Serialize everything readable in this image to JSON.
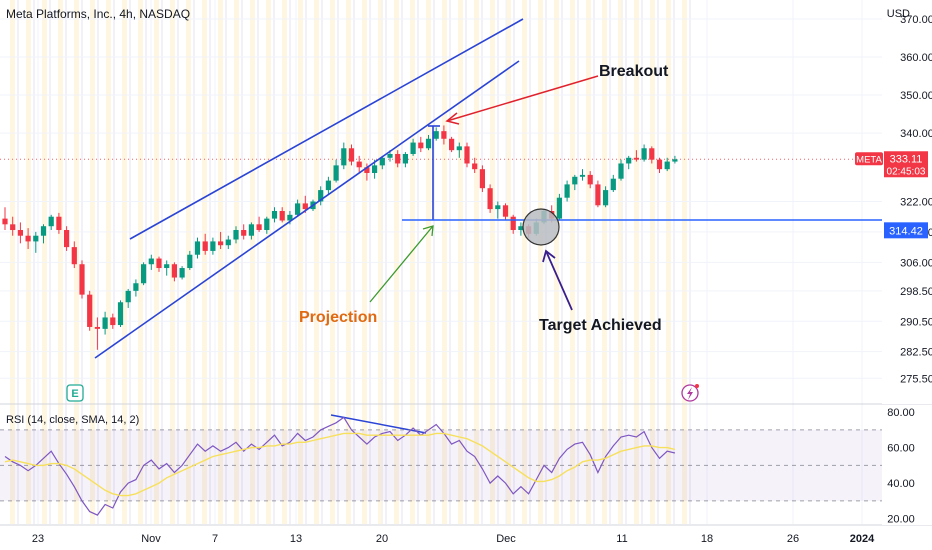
{
  "header": {
    "title": "Meta Platforms, Inc., 4h, NASDAQ",
    "currency": "USD"
  },
  "chart_data": [
    {
      "type": "candlestick",
      "ticker": "META",
      "price_axis": {
        "ticks": [
          "370.00",
          "360.00",
          "350.00",
          "340.00",
          "322.00",
          "314.00",
          "306.00",
          "298.50",
          "290.50",
          "282.50",
          "275.50"
        ],
        "ylim": [
          269,
          375
        ]
      },
      "time_axis": {
        "ticks": [
          "23",
          "Nov",
          "7",
          "13",
          "20",
          "Dec",
          "11",
          "18",
          "26",
          "2024"
        ]
      },
      "last_price": {
        "label": "META",
        "value": "333.11",
        "countdown": "02:45:03",
        "color": "#f23645"
      },
      "horizontal_level": {
        "value": "314.42",
        "color": "#2962ff"
      },
      "candles": [
        [
          317.5,
          320.5,
          314.5,
          316.0
        ],
        [
          316.0,
          318.0,
          313.0,
          314.5
        ],
        [
          314.5,
          316.5,
          311.0,
          313.0
        ],
        [
          313.0,
          315.0,
          309.5,
          311.5
        ],
        [
          311.5,
          314.0,
          308.5,
          313.0
        ],
        [
          313.0,
          316.0,
          311.0,
          315.5
        ],
        [
          315.5,
          318.5,
          314.5,
          318.0
        ],
        [
          318.0,
          319.0,
          313.5,
          314.5
        ],
        [
          314.5,
          315.5,
          309.0,
          310.0
        ],
        [
          310.0,
          311.5,
          304.5,
          305.5
        ],
        [
          305.5,
          306.5,
          296.5,
          297.5
        ],
        [
          297.5,
          298.5,
          288.0,
          289.0
        ],
        [
          289.0,
          291.5,
          283.0,
          288.5
        ],
        [
          288.5,
          293.0,
          287.0,
          291.5
        ],
        [
          291.5,
          292.5,
          288.5,
          289.5
        ],
        [
          289.5,
          296.0,
          289.0,
          295.5
        ],
        [
          295.5,
          299.0,
          294.0,
          298.5
        ],
        [
          298.5,
          301.5,
          297.0,
          300.5
        ],
        [
          300.5,
          306.0,
          300.0,
          305.5
        ],
        [
          305.5,
          308.0,
          304.0,
          307.0
        ],
        [
          307.0,
          307.5,
          303.5,
          304.5
        ],
        [
          304.5,
          306.5,
          302.5,
          305.5
        ],
        [
          305.5,
          306.0,
          301.0,
          302.0
        ],
        [
          302.0,
          305.0,
          301.5,
          304.5
        ],
        [
          304.5,
          309.0,
          304.0,
          308.0
        ],
        [
          308.0,
          312.5,
          307.0,
          311.5
        ],
        [
          311.5,
          313.5,
          308.0,
          309.0
        ],
        [
          309.0,
          312.5,
          308.0,
          311.5
        ],
        [
          311.5,
          314.0,
          309.5,
          310.5
        ],
        [
          310.5,
          313.0,
          309.5,
          312.0
        ],
        [
          312.0,
          315.5,
          311.0,
          314.5
        ],
        [
          314.5,
          316.0,
          312.0,
          313.0
        ],
        [
          313.0,
          316.5,
          312.0,
          316.0
        ],
        [
          316.0,
          318.0,
          314.0,
          314.5
        ],
        [
          314.5,
          318.0,
          313.5,
          317.5
        ],
        [
          317.5,
          320.5,
          316.5,
          319.5
        ],
        [
          319.5,
          320.5,
          316.5,
          317.0
        ],
        [
          317.0,
          319.5,
          316.0,
          318.5
        ],
        [
          318.5,
          322.5,
          318.0,
          321.5
        ],
        [
          321.5,
          323.5,
          319.0,
          320.0
        ],
        [
          320.0,
          322.5,
          319.5,
          322.0
        ],
        [
          322.0,
          326.0,
          321.0,
          325.0
        ],
        [
          325.0,
          328.5,
          324.0,
          327.5
        ],
        [
          327.5,
          333.0,
          327.0,
          331.5
        ],
        [
          331.5,
          337.5,
          330.5,
          336.0
        ],
        [
          336.0,
          337.0,
          331.5,
          332.5
        ],
        [
          332.5,
          334.0,
          329.5,
          331.0
        ],
        [
          331.0,
          332.0,
          327.5,
          329.5
        ],
        [
          329.5,
          333.0,
          328.0,
          331.5
        ],
        [
          331.5,
          334.0,
          330.5,
          333.5
        ],
        [
          333.5,
          335.5,
          332.5,
          334.5
        ],
        [
          334.5,
          335.5,
          331.0,
          332.0
        ],
        [
          332.0,
          335.0,
          331.0,
          334.5
        ],
        [
          334.5,
          338.5,
          334.0,
          337.5
        ],
        [
          337.5,
          339.0,
          335.0,
          336.0
        ],
        [
          336.0,
          339.5,
          335.5,
          338.5
        ],
        [
          338.5,
          341.5,
          338.0,
          340.5
        ],
        [
          340.5,
          342.0,
          337.0,
          338.5
        ],
        [
          338.5,
          339.0,
          335.0,
          335.5
        ],
        [
          335.5,
          337.5,
          333.5,
          336.5
        ],
        [
          336.5,
          337.5,
          331.0,
          332.0
        ],
        [
          332.0,
          333.5,
          329.5,
          330.5
        ],
        [
          330.5,
          331.5,
          324.5,
          325.5
        ],
        [
          325.5,
          326.5,
          319.0,
          320.0
        ],
        [
          320.0,
          322.0,
          317.5,
          321.0
        ],
        [
          321.0,
          321.5,
          317.0,
          318.0
        ],
        [
          318.0,
          318.5,
          313.5,
          314.5
        ],
        [
          314.5,
          316.5,
          313.0,
          315.5
        ],
        [
          315.5,
          316.0,
          312.5,
          313.5
        ],
        [
          313.5,
          317.5,
          313.0,
          316.5
        ],
        [
          316.5,
          320.0,
          316.0,
          319.5
        ],
        [
          319.5,
          321.0,
          316.5,
          317.5
        ],
        [
          317.5,
          324.0,
          317.0,
          323.0
        ],
        [
          323.0,
          327.5,
          322.0,
          326.5
        ],
        [
          326.5,
          329.0,
          325.0,
          328.5
        ],
        [
          328.5,
          330.5,
          327.5,
          329.0
        ],
        [
          329.0,
          330.0,
          325.5,
          326.5
        ],
        [
          326.5,
          327.5,
          320.5,
          321.0
        ],
        [
          321.0,
          326.0,
          320.5,
          325.0
        ],
        [
          325.0,
          329.0,
          324.5,
          328.0
        ],
        [
          328.0,
          333.0,
          327.5,
          332.0
        ],
        [
          332.0,
          334.0,
          330.5,
          333.5
        ],
        [
          333.5,
          335.5,
          332.5,
          333.0
        ],
        [
          333.0,
          337.0,
          332.5,
          336.0
        ],
        [
          336.0,
          336.5,
          332.0,
          333.0
        ],
        [
          333.0,
          333.5,
          329.5,
          330.5
        ],
        [
          330.5,
          333.5,
          330.0,
          332.5
        ],
        [
          332.5,
          334.0,
          332.0,
          333.11
        ]
      ]
    },
    {
      "type": "line",
      "label": "RSI (14, close, SMA, 14, 2)",
      "ticks": [
        "80.00",
        "60.00",
        "40.00",
        "20.00"
      ],
      "ylim": [
        17,
        84
      ],
      "band": [
        30,
        70
      ],
      "series": [
        {
          "color": "#7e57c2",
          "values": [
            55,
            52,
            50,
            47,
            50,
            54,
            58,
            51,
            45,
            38,
            30,
            24,
            22,
            28,
            26,
            35,
            40,
            42,
            50,
            53,
            48,
            51,
            46,
            50,
            56,
            62,
            58,
            61,
            58,
            60,
            63,
            58,
            62,
            59,
            63,
            67,
            61,
            63,
            68,
            64,
            66,
            70,
            72,
            74,
            77,
            70,
            66,
            62,
            66,
            68,
            69,
            64,
            67,
            71,
            67,
            70,
            73,
            68,
            62,
            64,
            58,
            55,
            48,
            40,
            44,
            40,
            34,
            38,
            34,
            42,
            50,
            46,
            54,
            59,
            62,
            63,
            56,
            46,
            55,
            61,
            66,
            67,
            66,
            69,
            60,
            54,
            58,
            57
          ]
        },
        {
          "color": "#f7e05c",
          "values": [
            52,
            53,
            52,
            51,
            50,
            50,
            51,
            51,
            50,
            48,
            45,
            42,
            39,
            36,
            34,
            33,
            33,
            34,
            36,
            38,
            40,
            43,
            45,
            47,
            49,
            51,
            53,
            55,
            56,
            57,
            58,
            59,
            60,
            60,
            61,
            61,
            62,
            62,
            63,
            63,
            64,
            65,
            66,
            67,
            68,
            68,
            68,
            67,
            67,
            67,
            67,
            67,
            67,
            67,
            67,
            67,
            68,
            68,
            67,
            66,
            65,
            63,
            61,
            58,
            55,
            52,
            49,
            46,
            43,
            41,
            41,
            42,
            44,
            47,
            49,
            52,
            53,
            53,
            54,
            56,
            58,
            59,
            60,
            61,
            61,
            60,
            60,
            59
          ]
        }
      ]
    }
  ],
  "annotations": {
    "breakout": "Breakout",
    "projection": "Projection",
    "target": "Target Achieved"
  },
  "icons": {
    "earnings_badge": "E",
    "flash_icon": "lightning-icon"
  }
}
